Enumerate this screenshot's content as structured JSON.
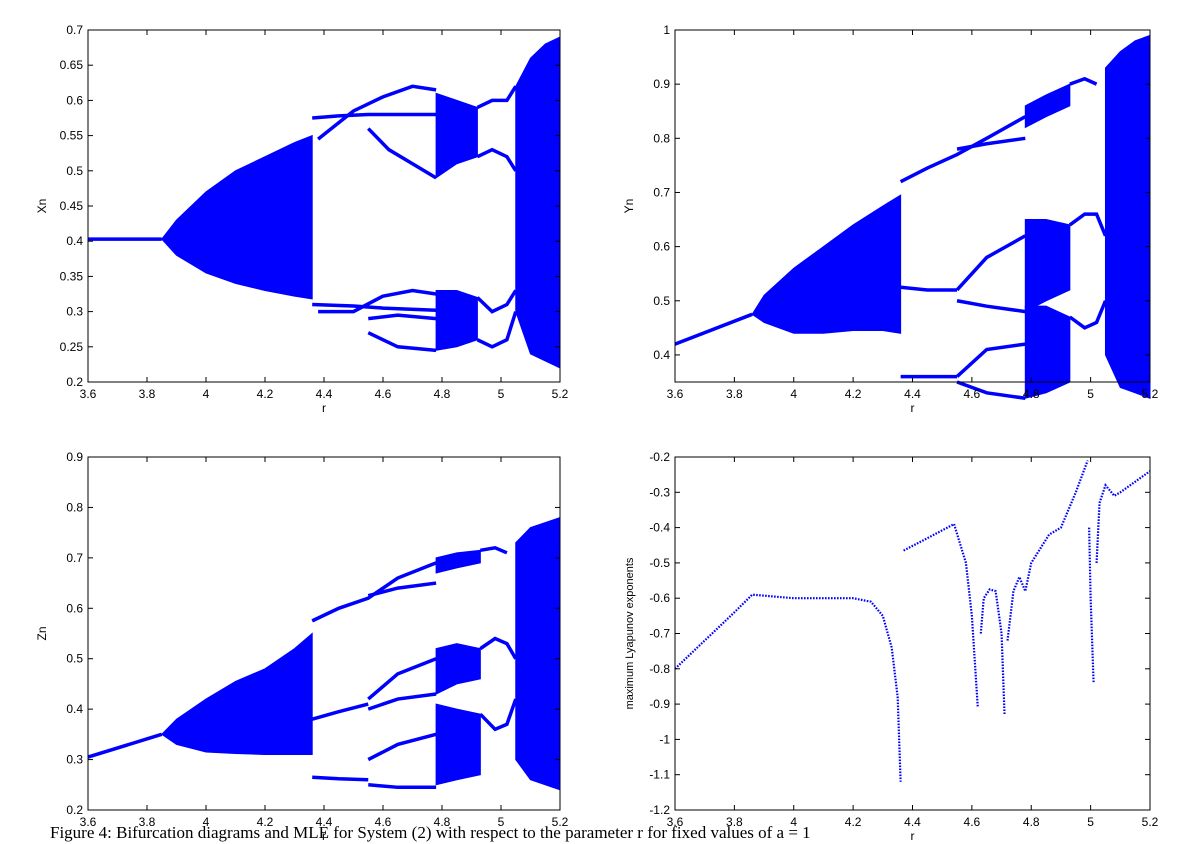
{
  "chart_data": [
    {
      "type": "bifurcation",
      "xlabel": "r",
      "ylabel": "Xn",
      "color": "#0000ff",
      "xlim": [
        3.6,
        5.2
      ],
      "xticks": [
        3.6,
        3.8,
        4,
        4.2,
        4.4,
        4.6,
        4.8,
        5,
        5.2
      ],
      "ylim": [
        0.2,
        0.7
      ],
      "yticks": [
        0.2,
        0.25,
        0.3,
        0.35,
        0.4,
        0.45,
        0.5,
        0.55,
        0.6,
        0.65,
        0.7
      ],
      "bands": [
        {
          "x": [
            3.85,
            3.9,
            4.0,
            4.1,
            4.2,
            4.3,
            4.36
          ],
          "upper": [
            0.403,
            0.43,
            0.47,
            0.5,
            0.52,
            0.54,
            0.55
          ],
          "lower": [
            0.403,
            0.38,
            0.355,
            0.34,
            0.33,
            0.322,
            0.318
          ]
        },
        {
          "x": [
            4.78,
            4.85,
            4.92
          ],
          "upper": [
            0.61,
            0.6,
            0.59
          ],
          "lower": [
            0.49,
            0.51,
            0.52
          ]
        },
        {
          "x": [
            4.78,
            4.85,
            4.92
          ],
          "upper": [
            0.33,
            0.33,
            0.32
          ],
          "lower": [
            0.245,
            0.25,
            0.26
          ]
        },
        {
          "x": [
            5.05,
            5.1,
            5.15,
            5.2
          ],
          "upper": [
            0.62,
            0.66,
            0.68,
            0.69
          ],
          "lower": [
            0.3,
            0.24,
            0.23,
            0.22
          ]
        }
      ],
      "branches": [
        {
          "x": [
            3.6,
            3.85
          ],
          "y": [
            0.403,
            0.403
          ]
        },
        {
          "x": [
            4.36,
            4.45,
            4.55,
            4.65,
            4.78
          ],
          "y": [
            0.575,
            0.578,
            0.58,
            0.58,
            0.58
          ]
        },
        {
          "x": [
            4.38,
            4.5,
            4.6,
            4.7,
            4.78
          ],
          "y": [
            0.545,
            0.585,
            0.605,
            0.62,
            0.615
          ]
        },
        {
          "x": [
            4.36,
            4.5,
            4.6,
            4.78
          ],
          "y": [
            0.31,
            0.308,
            0.305,
            0.302
          ]
        },
        {
          "x": [
            4.38,
            4.5,
            4.6,
            4.7,
            4.78
          ],
          "y": [
            0.3,
            0.3,
            0.322,
            0.33,
            0.325
          ]
        },
        {
          "x": [
            4.55,
            4.62,
            4.7,
            4.78
          ],
          "y": [
            0.56,
            0.53,
            0.51,
            0.49
          ]
        },
        {
          "x": [
            4.55,
            4.65,
            4.78
          ],
          "y": [
            0.27,
            0.25,
            0.245
          ]
        },
        {
          "x": [
            4.55,
            4.65,
            4.78
          ],
          "y": [
            0.29,
            0.295,
            0.29
          ]
        },
        {
          "x": [
            4.92,
            4.97,
            5.02,
            5.05
          ],
          "y": [
            0.59,
            0.6,
            0.6,
            0.62
          ]
        },
        {
          "x": [
            4.92,
            4.97,
            5.02,
            5.05
          ],
          "y": [
            0.52,
            0.53,
            0.52,
            0.5
          ]
        },
        {
          "x": [
            4.92,
            4.97,
            5.02,
            5.05
          ],
          "y": [
            0.32,
            0.3,
            0.31,
            0.33
          ]
        },
        {
          "x": [
            4.92,
            4.97,
            5.02,
            5.05
          ],
          "y": [
            0.26,
            0.25,
            0.26,
            0.3
          ]
        }
      ]
    },
    {
      "type": "bifurcation",
      "xlabel": "r",
      "ylabel": "Yn",
      "color": "#0000ff",
      "xlim": [
        3.6,
        5.2
      ],
      "xticks": [
        3.6,
        3.8,
        4,
        4.2,
        4.4,
        4.6,
        4.8,
        5,
        5.2
      ],
      "ylim": [
        0.35,
        1
      ],
      "yticks": [
        0.4,
        0.5,
        0.6,
        0.7,
        0.8,
        0.9,
        1
      ],
      "bands": [
        {
          "x": [
            3.86,
            3.9,
            4.0,
            4.1,
            4.2,
            4.3,
            4.36
          ],
          "upper": [
            0.475,
            0.51,
            0.56,
            0.6,
            0.64,
            0.675,
            0.695
          ],
          "lower": [
            0.475,
            0.46,
            0.44,
            0.44,
            0.445,
            0.445,
            0.44
          ]
        },
        {
          "x": [
            4.78,
            4.85,
            4.93
          ],
          "upper": [
            0.86,
            0.88,
            0.9
          ],
          "lower": [
            0.82,
            0.84,
            0.86
          ]
        },
        {
          "x": [
            4.78,
            4.85,
            4.93
          ],
          "upper": [
            0.65,
            0.65,
            0.64
          ],
          "lower": [
            0.48,
            0.5,
            0.52
          ]
        },
        {
          "x": [
            4.78,
            4.85,
            4.93
          ],
          "upper": [
            0.49,
            0.49,
            0.47
          ],
          "lower": [
            0.32,
            0.33,
            0.35
          ]
        },
        {
          "x": [
            5.05,
            5.1,
            5.15,
            5.2
          ],
          "upper": [
            0.93,
            0.96,
            0.98,
            0.99
          ],
          "lower": [
            0.4,
            0.34,
            0.33,
            0.32
          ]
        }
      ],
      "branches": [
        {
          "x": [
            3.6,
            3.86
          ],
          "y": [
            0.42,
            0.475
          ]
        },
        {
          "x": [
            4.36,
            4.45,
            4.55,
            4.65,
            4.78
          ],
          "y": [
            0.72,
            0.745,
            0.77,
            0.8,
            0.84
          ]
        },
        {
          "x": [
            4.55,
            4.65,
            4.78
          ],
          "y": [
            0.78,
            0.79,
            0.8
          ]
        },
        {
          "x": [
            4.36,
            4.45,
            4.55
          ],
          "y": [
            0.525,
            0.52,
            0.52
          ]
        },
        {
          "x": [
            4.36,
            4.45,
            4.55
          ],
          "y": [
            0.36,
            0.36,
            0.36
          ]
        },
        {
          "x": [
            4.55,
            4.65,
            4.78
          ],
          "y": [
            0.52,
            0.58,
            0.62
          ]
        },
        {
          "x": [
            4.55,
            4.65,
            4.78
          ],
          "y": [
            0.5,
            0.49,
            0.48
          ]
        },
        {
          "x": [
            4.55,
            4.65,
            4.78
          ],
          "y": [
            0.36,
            0.41,
            0.42
          ]
        },
        {
          "x": [
            4.55,
            4.65,
            4.78
          ],
          "y": [
            0.35,
            0.33,
            0.32
          ]
        },
        {
          "x": [
            4.93,
            4.98,
            5.02
          ],
          "y": [
            0.9,
            0.91,
            0.9
          ]
        },
        {
          "x": [
            4.93,
            4.98,
            5.02,
            5.05
          ],
          "y": [
            0.64,
            0.66,
            0.66,
            0.62
          ]
        },
        {
          "x": [
            4.93,
            4.98,
            5.02,
            5.05
          ],
          "y": [
            0.47,
            0.45,
            0.46,
            0.5
          ]
        }
      ]
    },
    {
      "type": "bifurcation",
      "xlabel": "r",
      "ylabel": "Zn",
      "color": "#0000ff",
      "xlim": [
        3.6,
        5.2
      ],
      "xticks": [
        3.6,
        3.8,
        4,
        4.2,
        4.4,
        4.6,
        4.8,
        5,
        5.2
      ],
      "ylim": [
        0.2,
        0.9
      ],
      "yticks": [
        0.2,
        0.3,
        0.4,
        0.5,
        0.6,
        0.7,
        0.8,
        0.9
      ],
      "bands": [
        {
          "x": [
            3.85,
            3.9,
            4.0,
            4.1,
            4.2,
            4.3,
            4.36
          ],
          "upper": [
            0.35,
            0.38,
            0.42,
            0.455,
            0.48,
            0.52,
            0.55
          ],
          "lower": [
            0.35,
            0.33,
            0.315,
            0.312,
            0.31,
            0.31,
            0.31
          ]
        },
        {
          "x": [
            4.78,
            4.85,
            4.93
          ],
          "upper": [
            0.7,
            0.71,
            0.715
          ],
          "lower": [
            0.67,
            0.68,
            0.69
          ]
        },
        {
          "x": [
            4.78,
            4.85,
            4.93
          ],
          "upper": [
            0.52,
            0.53,
            0.52
          ],
          "lower": [
            0.43,
            0.45,
            0.46
          ]
        },
        {
          "x": [
            4.78,
            4.85,
            4.93
          ],
          "upper": [
            0.41,
            0.4,
            0.39
          ],
          "lower": [
            0.25,
            0.26,
            0.27
          ]
        },
        {
          "x": [
            5.05,
            5.1,
            5.15,
            5.2
          ],
          "upper": [
            0.73,
            0.76,
            0.77,
            0.78
          ],
          "lower": [
            0.3,
            0.26,
            0.25,
            0.24
          ]
        }
      ],
      "branches": [
        {
          "x": [
            3.6,
            3.85
          ],
          "y": [
            0.305,
            0.35
          ]
        },
        {
          "x": [
            4.36,
            4.45,
            4.55,
            4.65,
            4.78
          ],
          "y": [
            0.575,
            0.6,
            0.62,
            0.66,
            0.69
          ]
        },
        {
          "x": [
            4.55,
            4.65,
            4.78
          ],
          "y": [
            0.625,
            0.64,
            0.65
          ]
        },
        {
          "x": [
            4.36,
            4.45,
            4.55
          ],
          "y": [
            0.38,
            0.395,
            0.41
          ]
        },
        {
          "x": [
            4.36,
            4.45,
            4.55
          ],
          "y": [
            0.265,
            0.262,
            0.26
          ]
        },
        {
          "x": [
            4.55,
            4.65,
            4.78
          ],
          "y": [
            0.42,
            0.47,
            0.5
          ]
        },
        {
          "x": [
            4.55,
            4.65,
            4.78
          ],
          "y": [
            0.4,
            0.42,
            0.43
          ]
        },
        {
          "x": [
            4.55,
            4.65,
            4.78
          ],
          "y": [
            0.3,
            0.33,
            0.35
          ]
        },
        {
          "x": [
            4.55,
            4.65,
            4.78
          ],
          "y": [
            0.25,
            0.245,
            0.245
          ]
        },
        {
          "x": [
            4.93,
            4.98,
            5.02
          ],
          "y": [
            0.715,
            0.72,
            0.71
          ]
        },
        {
          "x": [
            4.93,
            4.98,
            5.02,
            5.05
          ],
          "y": [
            0.52,
            0.54,
            0.53,
            0.5
          ]
        },
        {
          "x": [
            4.93,
            4.98,
            5.02,
            5.05
          ],
          "y": [
            0.39,
            0.36,
            0.37,
            0.42
          ]
        }
      ]
    },
    {
      "type": "lyapunov",
      "xlabel": "r",
      "ylabel": "maximum Lyapunov exponents",
      "color": "#0000ff",
      "xlim": [
        3.6,
        5.2
      ],
      "xticks": [
        3.6,
        3.8,
        4,
        4.2,
        4.4,
        4.6,
        4.8,
        5,
        5.2
      ],
      "ylim": [
        -1.2,
        -0.2
      ],
      "yticks": [
        -1.2,
        -1.1,
        -1,
        -0.9,
        -0.8,
        -0.7,
        -0.6,
        -0.5,
        -0.4,
        -0.3,
        -0.2
      ],
      "bands": [],
      "branches": [
        {
          "x": [
            3.6,
            3.7,
            3.8,
            3.86,
            4.0,
            4.2,
            4.26,
            4.3,
            4.33,
            4.35,
            4.36
          ],
          "y": [
            -0.8,
            -0.72,
            -0.64,
            -0.59,
            -0.6,
            -0.6,
            -0.61,
            -0.65,
            -0.74,
            -0.88,
            -1.12
          ]
        },
        {
          "x": [
            4.37,
            4.45,
            4.54,
            4.58,
            4.6,
            4.62
          ],
          "y": [
            -0.465,
            -0.43,
            -0.39,
            -0.5,
            -0.65,
            -0.91
          ]
        },
        {
          "x": [
            4.63,
            4.64,
            4.66,
            4.68,
            4.7,
            4.71
          ],
          "y": [
            -0.7,
            -0.6,
            -0.575,
            -0.58,
            -0.7,
            -0.93
          ]
        },
        {
          "x": [
            4.72,
            4.74,
            4.76,
            4.78,
            4.8,
            4.83,
            4.86,
            4.9,
            4.95,
            4.99
          ],
          "y": [
            -0.72,
            -0.58,
            -0.54,
            -0.58,
            -0.5,
            -0.46,
            -0.42,
            -0.4,
            -0.3,
            -0.21
          ]
        },
        {
          "x": [
            4.995,
            5.0,
            5.01
          ],
          "y": [
            -0.4,
            -0.6,
            -0.84
          ]
        },
        {
          "x": [
            5.02,
            5.03,
            5.05,
            5.08,
            5.1,
            5.15,
            5.2
          ],
          "y": [
            -0.5,
            -0.33,
            -0.28,
            -0.31,
            -0.3,
            -0.27,
            -0.24
          ]
        }
      ]
    }
  ],
  "caption": "Figure 4: Bifurcation diagrams and MLE for System (2) with respect to the parameter r for fixed values of a = 1"
}
